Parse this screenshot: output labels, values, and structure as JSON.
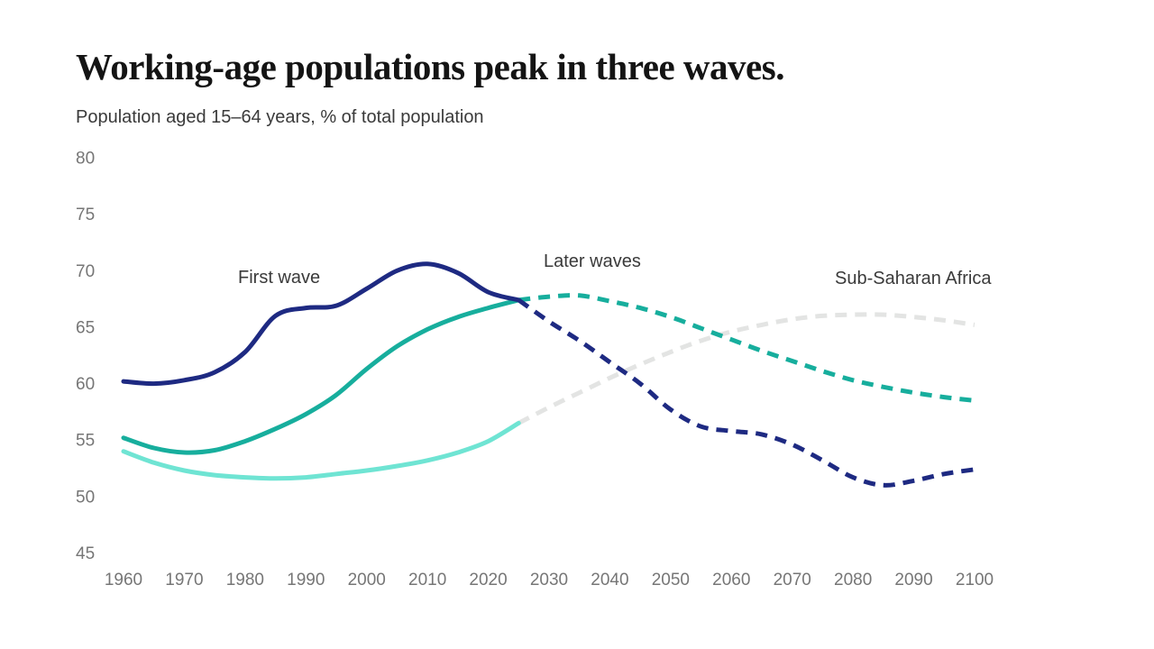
{
  "header": {
    "title": "Working-age populations peak in three waves.",
    "subtitle": "Population aged 15–64 years, % of total population"
  },
  "chart_data": {
    "type": "line",
    "title": "Working-age populations peak in three waves.",
    "ylabel": "Population aged 15–64 years, % of total population",
    "xlabel": "",
    "xlim": [
      1960,
      2100
    ],
    "ylim": [
      45,
      80
    ],
    "grid": false,
    "legend_position": "inline-annotations",
    "projection_split_year": 2025,
    "x_ticks": [
      1960,
      1970,
      1980,
      1990,
      2000,
      2010,
      2020,
      2030,
      2040,
      2050,
      2060,
      2070,
      2080,
      2090,
      2100
    ],
    "y_ticks": [
      80,
      75,
      70,
      65,
      60,
      55,
      50,
      45
    ],
    "x": [
      1960,
      1965,
      1970,
      1975,
      1980,
      1985,
      1990,
      1995,
      2000,
      2005,
      2010,
      2015,
      2020,
      2025,
      2030,
      2035,
      2040,
      2045,
      2050,
      2055,
      2060,
      2065,
      2070,
      2075,
      2080,
      2085,
      2090,
      2095,
      2100
    ],
    "series": [
      {
        "name": "First wave",
        "color_historical": "#1e2a82",
        "color_projection": "#1e2a82",
        "values": [
          60.2,
          60.0,
          60.3,
          61.0,
          62.8,
          66.0,
          66.7,
          66.9,
          68.4,
          70.0,
          70.6,
          69.8,
          68.1,
          67.4,
          65.5,
          63.8,
          61.9,
          60.0,
          57.7,
          56.2,
          55.8,
          55.5,
          54.6,
          53.2,
          51.7,
          51.0,
          51.4,
          52.0,
          52.4
        ]
      },
      {
        "name": "Later waves",
        "color_historical": "#17ae9d",
        "color_projection": "#17ae9d",
        "values": [
          55.2,
          54.3,
          53.9,
          54.1,
          54.9,
          56.0,
          57.3,
          59.0,
          61.3,
          63.3,
          64.8,
          65.9,
          66.7,
          67.4,
          67.7,
          67.8,
          67.3,
          66.7,
          65.9,
          64.9,
          63.9,
          62.9,
          62.0,
          61.1,
          60.3,
          59.7,
          59.2,
          58.8,
          58.5
        ]
      },
      {
        "name": "Sub-Saharan Africa",
        "color_historical": "#6fe4d3",
        "color_projection": "#e3e4e3",
        "values": [
          54.0,
          53.0,
          52.3,
          51.9,
          51.7,
          51.6,
          51.7,
          52.0,
          52.3,
          52.7,
          53.2,
          53.9,
          54.9,
          56.5,
          57.9,
          59.2,
          60.5,
          61.7,
          62.8,
          63.8,
          64.6,
          65.2,
          65.7,
          66.0,
          66.1,
          66.1,
          65.9,
          65.6,
          65.2
        ]
      }
    ],
    "annotations": [
      {
        "label": "First wave"
      },
      {
        "label": "Later waves"
      },
      {
        "label": "Sub-Saharan Africa"
      }
    ]
  },
  "style": {
    "background": "#ffffff",
    "title_color": "#141414",
    "subtitle_color": "#3a3a3a",
    "axis_label_color": "#767676",
    "annotation_color": "#3a3a3a"
  }
}
